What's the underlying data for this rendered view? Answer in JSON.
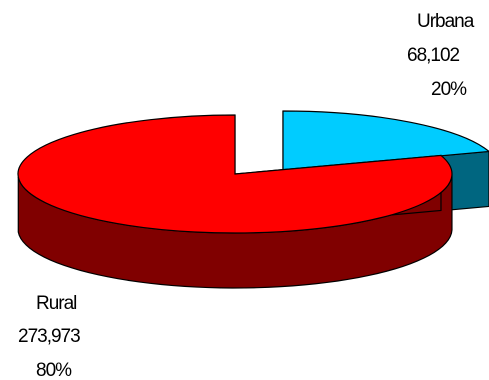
{
  "chart_data": {
    "type": "pie",
    "style": "3d-exploded",
    "title": "",
    "categories": [
      "Urbana",
      "Rural"
    ],
    "values": [
      68102,
      273973
    ],
    "value_labels": [
      "68,102",
      "273,973"
    ],
    "percent_labels": [
      "20%",
      "80%"
    ],
    "colors": {
      "Urbana": {
        "top": "#00ccff",
        "side": "#006680"
      },
      "Rural": {
        "top": "#ff0000",
        "side": "#800000"
      }
    },
    "exploded": [
      "Urbana"
    ],
    "start_angle_deg": 90,
    "direction": "clockwise",
    "legend": "none"
  }
}
